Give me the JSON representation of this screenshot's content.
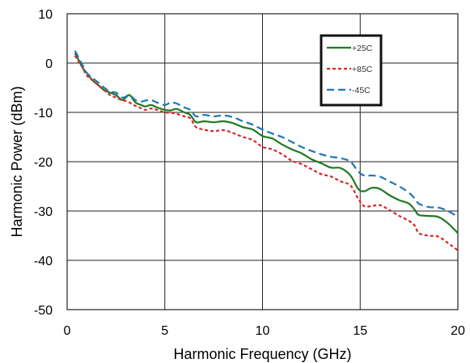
{
  "chart_data": {
    "type": "line",
    "title": "",
    "xlabel": "Harmonic Frequency (GHz)",
    "ylabel": "Harmonic Power (dBm)",
    "xlim": [
      0,
      20
    ],
    "ylim": [
      -50,
      10
    ],
    "xticks": [
      0,
      5,
      10,
      15,
      20
    ],
    "yticks": [
      10,
      0,
      -10,
      -20,
      -30,
      -40,
      -50
    ],
    "x_tick_labels": [
      "0",
      "5",
      "10",
      "15",
      "20"
    ],
    "y_tick_labels": [
      "10",
      "0",
      "-10",
      "-20",
      "-30",
      "-40",
      "-50"
    ],
    "grid": true,
    "legend_position": "top-right",
    "series": [
      {
        "name": "+25C",
        "color": "#1f7a1f",
        "dash": "solid",
        "x": [
          0.4,
          0.6,
          0.8,
          1.0,
          1.3,
          1.6,
          1.9,
          2.2,
          2.5,
          2.8,
          3.0,
          3.2,
          3.5,
          3.8,
          4.0,
          4.3,
          4.6,
          5.0,
          5.3,
          5.6,
          6.0,
          6.3,
          6.6,
          7.0,
          7.5,
          8.0,
          8.5,
          9.0,
          9.5,
          10.0,
          10.5,
          11.0,
          11.5,
          12.0,
          12.5,
          13.0,
          13.5,
          14.0,
          14.5,
          14.9,
          15.2,
          15.6,
          16.0,
          16.5,
          17.0,
          17.5,
          17.8,
          18.0,
          18.5,
          19.0,
          19.5,
          20.0
        ],
        "values": [
          2.0,
          0.5,
          -1.0,
          -2.0,
          -3.5,
          -4.5,
          -5.5,
          -6.0,
          -6.5,
          -7.5,
          -7.0,
          -6.5,
          -8.0,
          -8.5,
          -8.8,
          -8.5,
          -9.0,
          -9.5,
          -9.6,
          -9.3,
          -10.0,
          -10.5,
          -12.0,
          -11.8,
          -12.0,
          -11.8,
          -12.2,
          -13.0,
          -13.5,
          -14.8,
          -15.3,
          -16.5,
          -17.5,
          -18.3,
          -19.5,
          -20.3,
          -21.2,
          -21.3,
          -22.8,
          -25.5,
          -26.0,
          -25.3,
          -25.5,
          -26.8,
          -27.8,
          -28.5,
          -29.8,
          -30.8,
          -31.0,
          -31.2,
          -32.5,
          -34.5
        ]
      },
      {
        "name": "+85C",
        "color": "#d62728",
        "dash": "dotted",
        "x": [
          0.4,
          0.6,
          0.8,
          1.0,
          1.3,
          1.6,
          1.9,
          2.2,
          2.5,
          2.8,
          3.1,
          3.4,
          3.7,
          4.0,
          4.3,
          4.6,
          5.0,
          5.5,
          6.0,
          6.3,
          6.6,
          7.0,
          7.5,
          8.0,
          8.5,
          9.0,
          9.5,
          10.0,
          10.5,
          11.0,
          11.5,
          12.0,
          12.5,
          13.0,
          13.5,
          14.0,
          14.5,
          14.9,
          15.2,
          15.6,
          16.0,
          16.5,
          17.0,
          17.5,
          17.8,
          18.0,
          18.5,
          19.0,
          19.5,
          20.0
        ],
        "values": [
          1.5,
          0.2,
          -1.0,
          -2.5,
          -3.5,
          -4.5,
          -5.5,
          -6.5,
          -7.0,
          -7.5,
          -7.8,
          -8.5,
          -9.0,
          -9.5,
          -9.2,
          -9.5,
          -10.0,
          -10.2,
          -10.8,
          -11.2,
          -13.0,
          -13.5,
          -13.8,
          -13.6,
          -14.2,
          -15.0,
          -15.6,
          -17.0,
          -17.5,
          -18.5,
          -19.8,
          -20.5,
          -21.5,
          -22.5,
          -23.0,
          -24.0,
          -24.8,
          -27.5,
          -29.0,
          -29.0,
          -28.8,
          -29.8,
          -31.0,
          -32.0,
          -33.0,
          -34.5,
          -35.0,
          -35.2,
          -36.5,
          -38.0
        ]
      },
      {
        "name": "-45C",
        "color": "#1f77b4",
        "dash": "dashed",
        "x": [
          0.4,
          0.6,
          0.8,
          1.0,
          1.3,
          1.6,
          1.9,
          2.2,
          2.5,
          2.8,
          3.0,
          3.2,
          3.5,
          3.8,
          4.0,
          4.3,
          4.6,
          5.0,
          5.3,
          5.6,
          6.0,
          6.3,
          6.6,
          7.0,
          7.5,
          8.0,
          8.5,
          9.0,
          9.5,
          10.0,
          10.5,
          11.0,
          11.5,
          12.0,
          12.5,
          13.0,
          13.5,
          14.0,
          14.5,
          14.9,
          15.2,
          15.6,
          16.0,
          16.5,
          17.0,
          17.5,
          17.8,
          18.0,
          18.5,
          19.0,
          19.5,
          20.0
        ],
        "values": [
          2.5,
          1.0,
          -0.5,
          -2.0,
          -3.0,
          -4.0,
          -5.0,
          -5.8,
          -6.0,
          -7.0,
          -6.8,
          -6.5,
          -7.5,
          -7.8,
          -7.6,
          -7.5,
          -8.0,
          -8.5,
          -8.0,
          -8.2,
          -9.0,
          -9.5,
          -10.8,
          -10.5,
          -10.8,
          -10.6,
          -11.0,
          -11.8,
          -12.5,
          -13.5,
          -14.3,
          -15.0,
          -16.0,
          -17.0,
          -17.8,
          -18.5,
          -19.0,
          -19.3,
          -20.0,
          -22.0,
          -22.8,
          -22.8,
          -23.0,
          -24.0,
          -25.0,
          -26.3,
          -27.5,
          -28.5,
          -29.2,
          -29.3,
          -30.0,
          -31.2
        ]
      }
    ]
  }
}
